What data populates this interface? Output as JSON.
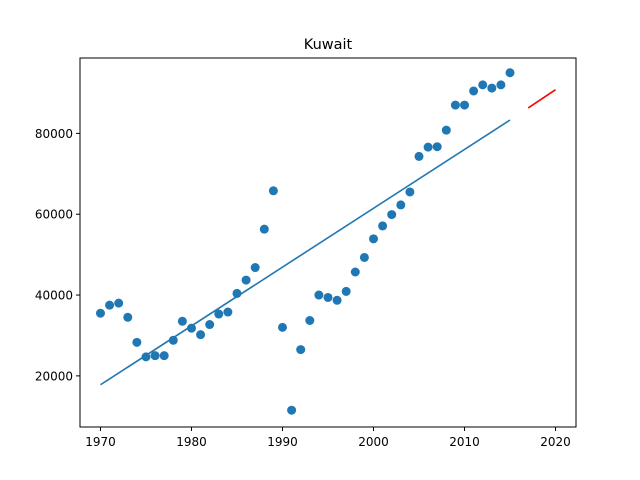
{
  "chart_data": {
    "type": "scatter",
    "title": "Kuwait",
    "xlabel": "",
    "ylabel": "",
    "xlim": [
      1967.75,
      2022.25
    ],
    "ylim": [
      7350,
      98650
    ],
    "xticks": [
      1970,
      1980,
      1990,
      2000,
      2010,
      2020
    ],
    "yticks": [
      20000,
      40000,
      60000,
      80000
    ],
    "grid": false,
    "colors": {
      "points": "#1f77b4",
      "fit": "#1f77b4",
      "forecast": "#ff0000"
    },
    "series": [
      {
        "type": "scatter",
        "x": [
          1970,
          1971,
          1972,
          1973,
          1974,
          1975,
          1976,
          1977,
          1978,
          1979,
          1980,
          1981,
          1982,
          1983,
          1984,
          1985,
          1986,
          1987,
          1988,
          1989,
          1990,
          1991,
          1992,
          1993,
          1994,
          1995,
          1996,
          1997,
          1998,
          1999,
          2000,
          2001,
          2002,
          2003,
          2004,
          2005,
          2006,
          2007,
          2008,
          2009,
          2010,
          2011,
          2012,
          2013,
          2014,
          2015
        ],
        "y": [
          35500,
          37500,
          38000,
          34500,
          28300,
          24700,
          25000,
          25000,
          28800,
          33500,
          31800,
          30200,
          32700,
          35300,
          35800,
          40400,
          43700,
          46800,
          56300,
          65800,
          32000,
          11500,
          26500,
          33700,
          40000,
          39400,
          38700,
          40900,
          45700,
          49300,
          53900,
          57100,
          59900,
          62300,
          65500,
          74300,
          76600,
          76700,
          80800,
          87000,
          87000,
          90500,
          92000,
          91200,
          92000,
          95000
        ]
      },
      {
        "type": "line",
        "x": [
          1970,
          2015
        ],
        "y": [
          17800,
          83300
        ]
      },
      {
        "type": "line",
        "x": [
          2017,
          2020
        ],
        "y": [
          86300,
          90800
        ]
      }
    ]
  }
}
